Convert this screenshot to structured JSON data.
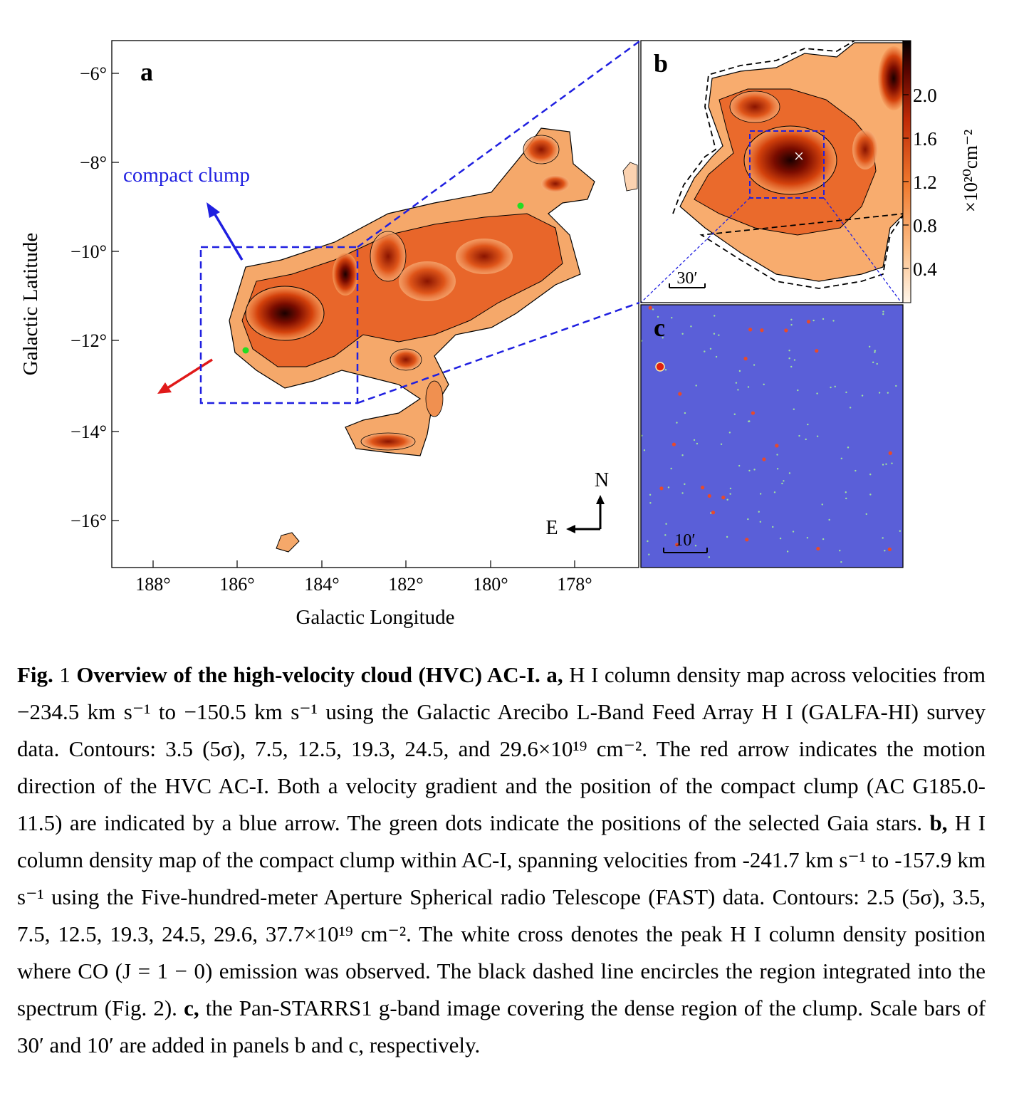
{
  "panel_a": {
    "label": "a",
    "xlabel": "Galactic Longitude",
    "ylabel": "Galactic Latitude",
    "xticks": [
      "188°",
      "186°",
      "184°",
      "182°",
      "180°",
      "178°"
    ],
    "yticks": [
      "−6°",
      "−8°",
      "−10°",
      "−12°",
      "−14°",
      "−16°"
    ],
    "annotation": "compact clump",
    "compass_n": "N",
    "compass_e": "E",
    "blue_color": "#1f1fe0",
    "red_color": "#e01919",
    "star_color": "#22dd22"
  },
  "panel_b": {
    "label": "b",
    "scale_bar": "30′",
    "colorbar_ticks": [
      "2.0",
      "1.6",
      "1.2",
      "0.8",
      "0.4"
    ],
    "colorbar_unit": "×10²⁰cm⁻²",
    "peak_marker": "×"
  },
  "panel_c": {
    "label": "c",
    "scale_bar": "10′",
    "bg_color": "#5a5fd8"
  },
  "caption": {
    "fig_label": "Fig.",
    "fig_num": " 1 ",
    "title": "Overview of the high-velocity cloud (HVC) AC-I.",
    "a_label": "a,",
    "a_text": "H I column density map across velocities from −234.5 km s⁻¹ to −150.5 km s⁻¹ using the Galactic Arecibo L-Band Feed Array H I (GALFA-HI) survey data. Contours: 3.5 (5σ), 7.5, 12.5, 19.3, 24.5, and 29.6×10¹⁹ cm⁻². The red arrow indicates the motion direction of the HVC AC-I. Both a velocity gradient and the position of the compact clump (AC G185.0-11.5) are indicated by a blue arrow. The green dots indicate the positions of the selected Gaia stars.",
    "b_label": "b,",
    "b_text": "H I column density map of the compact clump within AC-I, spanning velocities from -241.7 km s⁻¹ to -157.9 km s⁻¹ using the Five-hundred-meter Aperture Spherical radio Telescope (FAST) data. Contours: 2.5 (5σ), 3.5, 7.5, 12.5, 19.3, 24.5, 29.6, 37.7×10¹⁹ cm⁻². The white cross denotes the peak H I column density position where CO (J = 1 − 0) emission was observed. The black dashed line encircles the region integrated into the spectrum (Fig. 2).",
    "c_label": "c,",
    "c_text": "the Pan-STARRS1 g-band image covering the dense region of the clump. Scale bars of 30′ and 10′ are added in panels b and c, respectively."
  }
}
